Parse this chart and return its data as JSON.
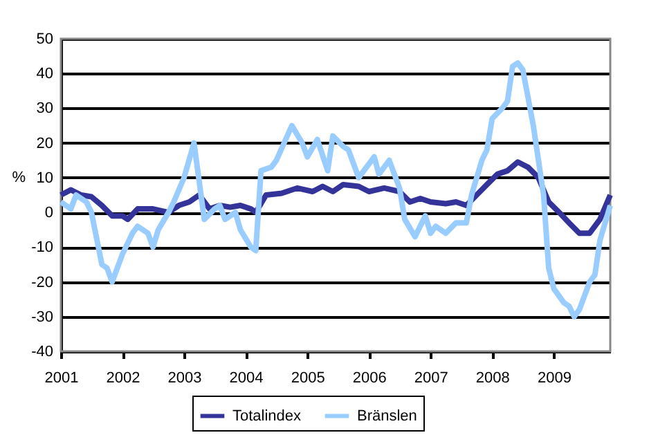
{
  "chart_data": {
    "type": "line",
    "ylabel": "%",
    "ylim": [
      -40,
      50
    ],
    "yticks": [
      -40,
      -30,
      -20,
      -10,
      0,
      10,
      20,
      30,
      40,
      50
    ],
    "xlim": [
      "2001-01",
      "2009-12"
    ],
    "xticks": [
      {
        "value": "2001-01",
        "label": "2001"
      },
      {
        "value": "2002-01",
        "label": "2002"
      },
      {
        "value": "2003-01",
        "label": "2003"
      },
      {
        "value": "2004-01",
        "label": "2004"
      },
      {
        "value": "2005-01",
        "label": "2005"
      },
      {
        "value": "2006-01",
        "label": "2006"
      },
      {
        "value": "2007-01",
        "label": "2007"
      },
      {
        "value": "2008-01",
        "label": "2008"
      },
      {
        "value": "2009-01",
        "label": "2009"
      }
    ],
    "grid": "y",
    "legend": "bottom",
    "line_style": "solid",
    "marker": "none",
    "series": [
      {
        "name": "Totalindex",
        "color": "#333399",
        "x": [
          "2001-01",
          "2001-03",
          "2001-05",
          "2001-07",
          "2001-09",
          "2001-11",
          "2002-01",
          "2002-02",
          "2002-04",
          "2002-07",
          "2002-10",
          "2002-12",
          "2003-02",
          "2003-04",
          "2003-06",
          "2003-08",
          "2003-10",
          "2003-12",
          "2004-02",
          "2004-03",
          "2004-05",
          "2004-08",
          "2004-11",
          "2005-02",
          "2005-04",
          "2005-06",
          "2005-08",
          "2005-11",
          "2006-01",
          "2006-04",
          "2006-07",
          "2006-09",
          "2006-11",
          "2007-01",
          "2007-04",
          "2007-06",
          "2007-08",
          "2007-10",
          "2007-12",
          "2008-02",
          "2008-04",
          "2008-06",
          "2008-08",
          "2008-10",
          "2008-12",
          "2009-02",
          "2009-04",
          "2009-06",
          "2009-08",
          "2009-10",
          "2009-12"
        ],
        "values": [
          5,
          6.5,
          5,
          4.5,
          2,
          -1,
          -1,
          -2,
          1,
          1,
          0,
          2,
          3,
          5,
          1,
          2,
          1.5,
          2,
          1,
          0,
          5,
          5.5,
          7,
          6,
          7.5,
          6,
          8,
          7.5,
          6,
          7,
          6,
          3,
          4,
          3,
          2.5,
          3,
          2,
          5,
          8,
          11,
          12,
          14.5,
          13,
          10,
          3,
          0,
          -3,
          -6,
          -6,
          -2,
          5
        ]
      },
      {
        "name": "Bränslen",
        "color": "#99ccff",
        "x": [
          "2001-01",
          "2001-03",
          "2001-04",
          "2001-06",
          "2001-07",
          "2001-09",
          "2001-10",
          "2001-11",
          "2002-01",
          "2002-03",
          "2002-04",
          "2002-06",
          "2002-07",
          "2002-08",
          "2002-10",
          "2002-11",
          "2003-01",
          "2003-03",
          "2003-05",
          "2003-07",
          "2003-08",
          "2003-09",
          "2003-11",
          "2003-12",
          "2004-02",
          "2004-03",
          "2004-04",
          "2004-06",
          "2004-07",
          "2004-10",
          "2004-12",
          "2005-01",
          "2005-03",
          "2005-05",
          "2005-06",
          "2005-08",
          "2005-09",
          "2005-11",
          "2006-02",
          "2006-03",
          "2006-05",
          "2006-07",
          "2006-08",
          "2006-10",
          "2006-12",
          "2007-01",
          "2007-02",
          "2007-04",
          "2007-06",
          "2007-08",
          "2007-09",
          "2007-11",
          "2007-12",
          "2008-01",
          "2008-03",
          "2008-04",
          "2008-05",
          "2008-06",
          "2008-07",
          "2008-09",
          "2008-11",
          "2008-12",
          "2009-01",
          "2009-03",
          "2009-04",
          "2009-05",
          "2009-06",
          "2009-08",
          "2009-09",
          "2009-10",
          "2009-12"
        ],
        "values": [
          3,
          1,
          5,
          3,
          0,
          -15,
          -16,
          -20,
          -12,
          -6,
          -4,
          -6,
          -10,
          -5,
          0,
          3,
          10,
          20,
          -2,
          1,
          2,
          -2,
          0,
          -5,
          -10,
          -11,
          12,
          13,
          15,
          25,
          20,
          16,
          21,
          12,
          22,
          19,
          18,
          10,
          16,
          11,
          15,
          7,
          -2,
          -7,
          -1,
          -6,
          -4,
          -6,
          -3,
          -3,
          5,
          15,
          18,
          27,
          30,
          32,
          42,
          43,
          41,
          25,
          5,
          -16,
          -22,
          -26,
          -27,
          -30,
          -28,
          -20,
          -18,
          -8,
          2
        ]
      }
    ]
  }
}
